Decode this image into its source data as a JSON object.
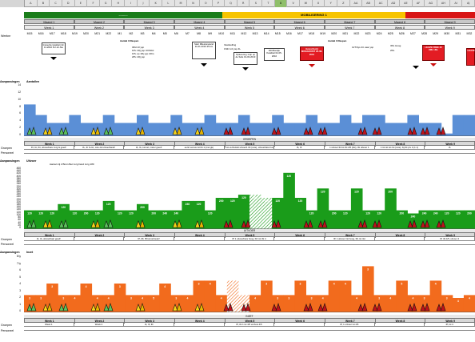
{
  "sheet": {
    "columns": [
      "A",
      "B",
      "C",
      "D",
      "E",
      "F",
      "G",
      "H",
      "I",
      "J",
      "K",
      "L",
      "M",
      "N",
      "O",
      "P",
      "Q",
      "R",
      "S",
      "T",
      "U",
      "V",
      "W",
      "X",
      "Y",
      "Z",
      "AA",
      "AB",
      "AC",
      "AD",
      "AE",
      "AF",
      "AG",
      "AH",
      "AI",
      "AJ"
    ],
    "selected_column": "U"
  },
  "phases": {
    "green_title": "..........",
    "yellow_title": "MOBILISERING 1",
    "red_title": ""
  },
  "header_months": [
    "Maand 1",
    "Maand 2",
    "Maand 3",
    "Maand 4",
    "Maand 5",
    "Maand 6",
    "Maand 7",
    "Maand 8",
    "Maand 9"
  ],
  "header_weeks": [
    "Week 1",
    "Week 2",
    "Week 3",
    "Week 4",
    "Week 5",
    "Week 6",
    "Week 7",
    "Week 8",
    "Week 9"
  ],
  "week_numbers": [
    "M15",
    "M16",
    "M17",
    "M18",
    "M19",
    "M20",
    "M21",
    "M22",
    "M1",
    "M2",
    "M3",
    "M4",
    "M5",
    "M6",
    "M7",
    "M8",
    "M9",
    "M10",
    "M11",
    "M12",
    "M13",
    "M14",
    "M15",
    "M16",
    "M17",
    "M18",
    "M19",
    "M20",
    "M21",
    "M22",
    "M23",
    "M24",
    "M25",
    "M26",
    "M27",
    "M28",
    "M29",
    "M30",
    "M31",
    "M32"
  ],
  "row_labels": {
    "row_weeks": "Weeknr",
    "chart1": "Aanpassingen",
    "chart2": "Aanpassingen",
    "chart3": "Aanpassingen",
    "groepen": "Groepen",
    "personeel": "Personeel"
  },
  "notes": [
    {
      "text": "Inspectie kwaliteit 22-11-2010 8:2-12-Ste",
      "type": "white"
    },
    {
      "text": "Start Milestoneland 11-01-2010 25 km",
      "type": "white"
    },
    {
      "text": "Oplevering 1 lijn op de Safe 19-03-2010",
      "type": "white"
    },
    {
      "text": "Eindfeestje Kwaliteit 02-05-2010",
      "type": "white"
    },
    {
      "text": "Grand Gold MISSAKOSIT 26-08-2010",
      "type": "red"
    },
    {
      "text": "LEAVE FREE 40 XML UEL",
      "type": "red"
    },
    {
      "text": "LEAVE",
      "type": "red"
    }
  ],
  "small_notes": [
    "Aantal 3 Raspen",
    "3Rd 13 ysp",
    "1PL 1Rj ysp 4Orbitsl",
    "1PL op 1Rj ysp 4Ors",
    "2PL 1Rj ysp",
    "Vaststelling",
    "1Stb 1rd ysp 4L",
    "Aantal 3 Raspen",
    "12T/4ys 2rt vaar ysp",
    "3Pe Hoog",
    "2Pe"
  ],
  "chart1": {
    "title": "Aantallen",
    "y_ticks": [
      "14",
      "12",
      "10",
      "8",
      "6",
      "4",
      "2",
      "0"
    ],
    "color": "#5b8fd6"
  },
  "chart2": {
    "title": "Uitvoer",
    "subtitle": "Aantal vrij 2 Bruin   Bet zorg hand zorg 180",
    "y_ticks": [
      "460",
      "440",
      "420",
      "400",
      "380",
      "360",
      "340",
      "320",
      "300",
      "280",
      "260",
      "240",
      "220",
      "200",
      "180",
      "160",
      "140",
      "120",
      "100",
      "80",
      "60",
      "40",
      "20",
      "0"
    ],
    "color": "#1a9c1a",
    "bar_labels": [
      "120",
      "120",
      "120",
      "120",
      "120",
      "200",
      "120",
      "120",
      "120",
      "120",
      "200",
      "200",
      "240",
      "240",
      "240",
      "120",
      "120",
      "200",
      "120",
      "120",
      "200",
      "120"
    ]
  },
  "chart3": {
    "title": "Inzet",
    "y_ticks": [
      "8 ty",
      "7 ty",
      "6",
      "5",
      "4",
      "3",
      "2",
      "1",
      "0"
    ],
    "color": "#f26b1d",
    "bar_labels": [
      "3",
      "3",
      "3",
      "3",
      "4",
      "4",
      "4",
      "4",
      "3",
      "3",
      "4",
      "5",
      "4",
      "3",
      "4",
      "3",
      "4",
      "4",
      "3",
      "4",
      "4",
      "3"
    ]
  },
  "bands": {
    "band1_title": "GROEPEN",
    "band2_title": "UITVOER",
    "band3_title": "INZET",
    "segments": [
      "Week 1",
      "Week 2",
      "Week 3",
      "Week 4",
      "Week 5",
      "Week 6",
      "Week 7",
      "Week 8",
      "Week 9"
    ],
    "desc1": [
      "IN, IA, tbt, uitvoerbare zorg & goed!",
      "IA, Jn fu-tst, ovie-tst uitvoerband!",
      "IA, IA, tunnel, meter goed!",
      "eerst versus tst tbt 1 (met gk)",
      "1 tot verhuistst uitvoer1 tbt (ovie), uitvoerbare hoog 4",
      "IA, IF",
      "1 uitvoer tbt tst tbt 4/5 (4st), tbt uitvoer 1",
      "1 tst tst tot rist (ovie), bij tbt prv 4 (1 1)",
      "IA"
    ],
    "desc2": [
      "IA, IA, uitvoerbaar goed!",
      "",
      "IP, ZF, IB tunnelmeter!",
      "",
      "IP 1 uitvoerbare hoog, IM, tst tbt 4",
      "",
      "IP, 1 uitvoer rist hoog, IM, tst 4st",
      "",
      "IP, tbt 4/5, uitvoer 4"
    ],
    "desc3": [
      "Week 1",
      "Week 2",
      "IA, IF, fill",
      "",
      "IP, tbt 1 tst 4/5 verhuis 4/5",
      "",
      "IP, 1 uitvoer tst 4/5",
      "",
      "IP, tst 4"
    ]
  }
}
